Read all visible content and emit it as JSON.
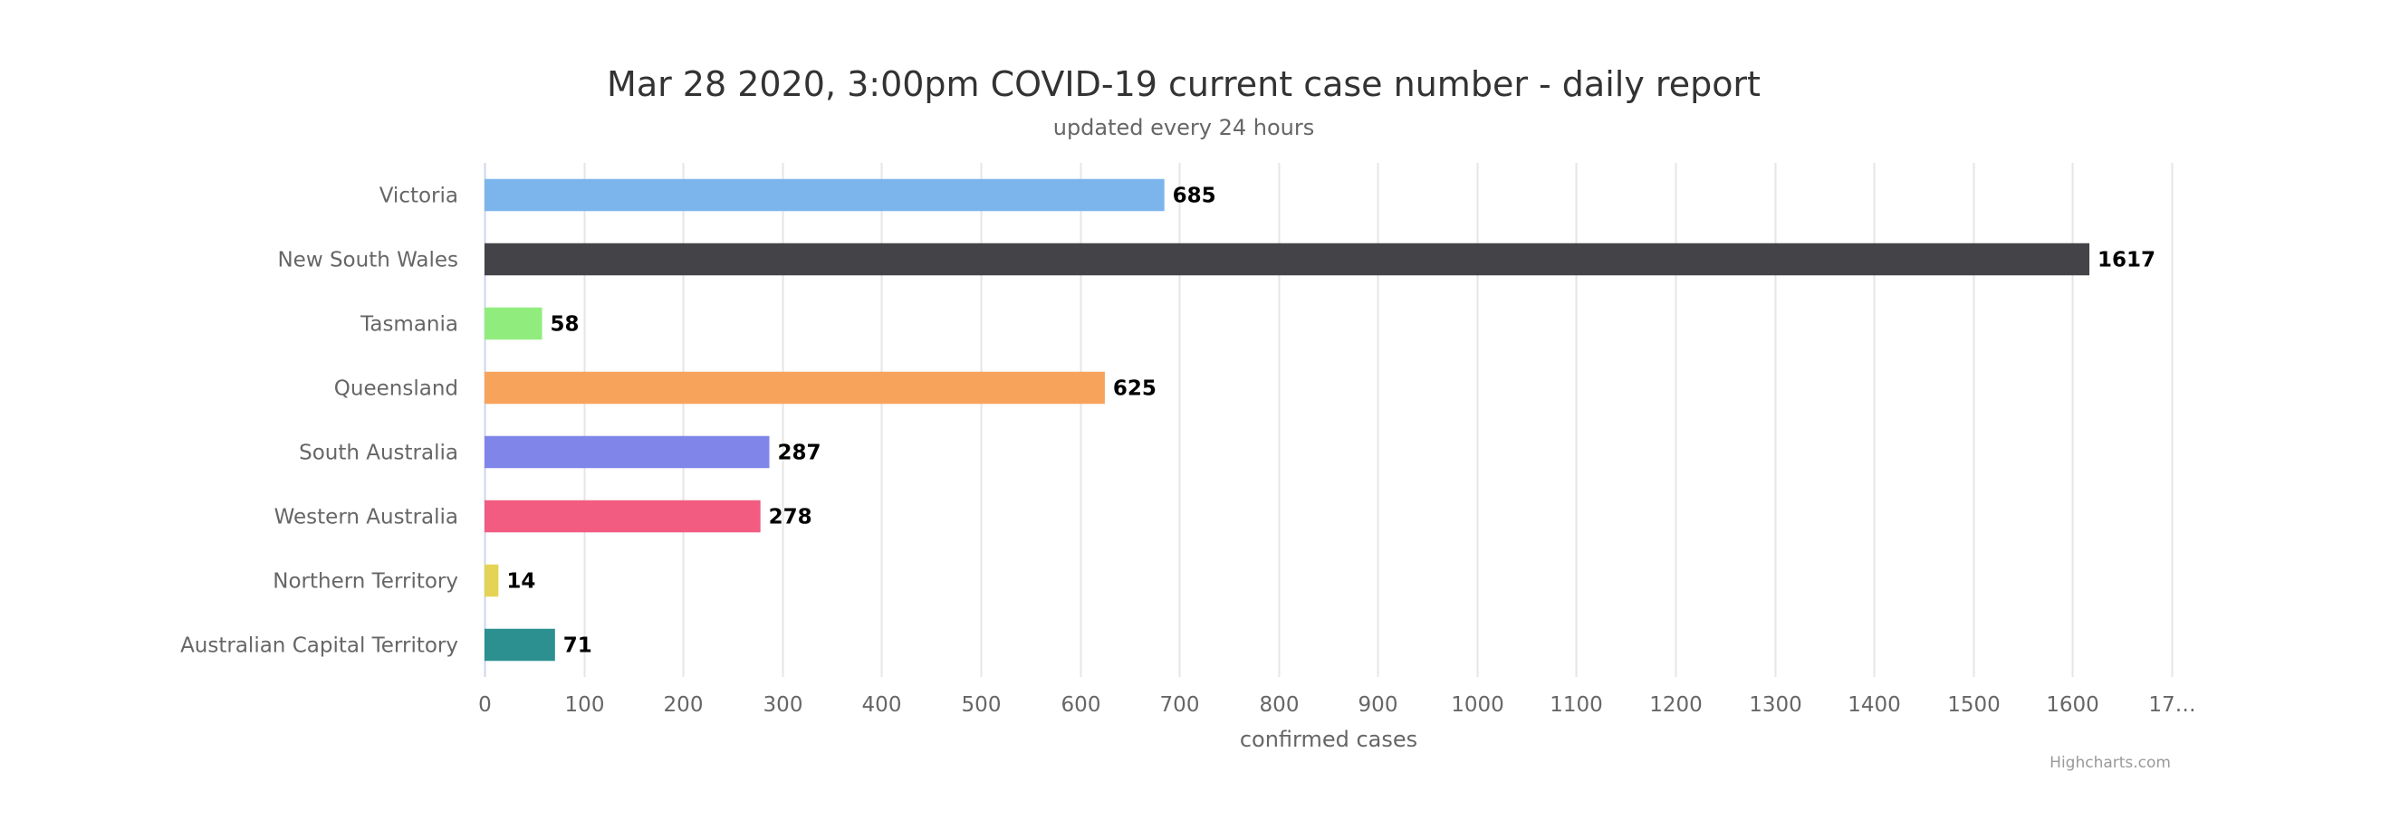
{
  "chart_data": {
    "type": "bar",
    "orientation": "horizontal",
    "title": "Mar 28 2020, 3:00pm COVID-19 current case number - daily report",
    "subtitle": "updated every 24 hours",
    "xlabel": "confirmed cases",
    "ylabel": "",
    "categories": [
      "Victoria",
      "New South Wales",
      "Tasmania",
      "Queensland",
      "South Australia",
      "Western Australia",
      "Northern Territory",
      "Australian Capital Territory"
    ],
    "values": [
      685,
      1617,
      58,
      625,
      287,
      278,
      14,
      71
    ],
    "colors": [
      "#7cb5ec",
      "#434348",
      "#90ed7d",
      "#f7a35c",
      "#8085e9",
      "#f15c80",
      "#e4d354",
      "#2b908f"
    ],
    "xlim": [
      0,
      1700
    ],
    "tick_interval": 100,
    "tick_labels": [
      "0",
      "100",
      "200",
      "300",
      "400",
      "500",
      "600",
      "700",
      "800",
      "900",
      "1000",
      "1100",
      "1200",
      "1300",
      "1400",
      "1500",
      "1600",
      "17…"
    ],
    "grid": true,
    "data_labels": true,
    "legend": false
  },
  "credits": "Highcharts.com"
}
